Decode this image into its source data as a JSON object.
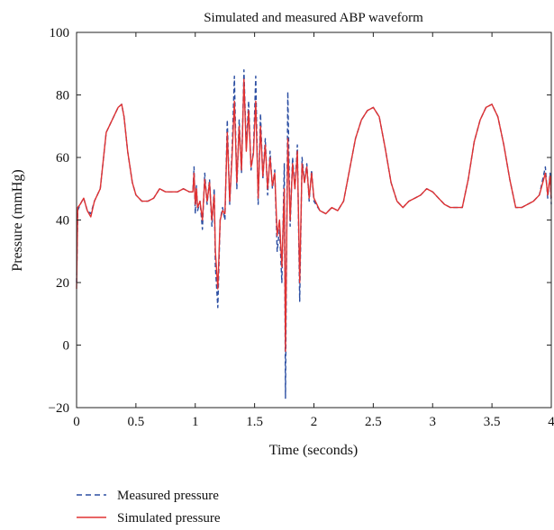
{
  "chart_data": {
    "type": "line",
    "title": "Simulated and measured ABP waveform",
    "xlabel": "Time (seconds)",
    "ylabel": "Pressure (mmHg)",
    "xlim": [
      0,
      4
    ],
    "ylim": [
      -20,
      100
    ],
    "x_ticks": [
      0,
      0.5,
      1,
      1.5,
      2,
      2.5,
      3,
      3.5,
      4
    ],
    "x_tick_labels": [
      "0",
      "0.5",
      "1",
      "1.5",
      "2",
      "2.5",
      "3",
      "3.5",
      "4"
    ],
    "y_ticks": [
      -20,
      0,
      20,
      40,
      60,
      80,
      100
    ],
    "y_tick_labels": [
      "−20",
      "0",
      "20",
      "40",
      "60",
      "80",
      "100"
    ],
    "grid": false,
    "legend_position": "bottom-left-outside",
    "series": [
      {
        "name": "Measured pressure",
        "color": "#2b4ea2",
        "style": "dashed",
        "x": [
          0,
          0.01,
          0.03,
          0.06,
          0.09,
          0.12,
          0.15,
          0.2,
          0.25,
          0.3,
          0.35,
          0.38,
          0.4,
          0.43,
          0.47,
          0.5,
          0.55,
          0.6,
          0.65,
          0.7,
          0.75,
          0.8,
          0.85,
          0.9,
          0.95,
          0.98,
          0.99,
          1.0,
          1.01,
          1.02,
          1.04,
          1.06,
          1.08,
          1.1,
          1.12,
          1.14,
          1.16,
          1.17,
          1.19,
          1.21,
          1.23,
          1.25,
          1.27,
          1.29,
          1.31,
          1.33,
          1.35,
          1.37,
          1.39,
          1.41,
          1.43,
          1.45,
          1.47,
          1.49,
          1.51,
          1.53,
          1.55,
          1.57,
          1.59,
          1.61,
          1.63,
          1.65,
          1.67,
          1.69,
          1.71,
          1.73,
          1.75,
          1.76,
          1.78,
          1.8,
          1.82,
          1.84,
          1.86,
          1.88,
          1.9,
          1.92,
          1.94,
          1.96,
          1.98,
          2.0,
          2.05,
          2.1,
          2.15,
          2.2,
          2.25,
          2.3,
          2.35,
          2.4,
          2.45,
          2.5,
          2.55,
          2.6,
          2.65,
          2.7,
          2.75,
          2.8,
          2.85,
          2.9,
          2.95,
          3.0,
          3.05,
          3.1,
          3.15,
          3.2,
          3.25,
          3.3,
          3.35,
          3.4,
          3.45,
          3.5,
          3.55,
          3.6,
          3.65,
          3.7,
          3.75,
          3.8,
          3.85,
          3.9,
          3.95,
          3.97,
          3.99,
          4.0
        ],
        "y": [
          20,
          43,
          45,
          47,
          43,
          42,
          46,
          50,
          68,
          72,
          76,
          77,
          73,
          62,
          52,
          48,
          46,
          46,
          47,
          50,
          49,
          49,
          49,
          50,
          49,
          49,
          57,
          42,
          51,
          43,
          46,
          37,
          55,
          45,
          53,
          38,
          50,
          25,
          12,
          40,
          44,
          40,
          72,
          45,
          62,
          86,
          50,
          72,
          55,
          88,
          63,
          78,
          56,
          62,
          86,
          45,
          74,
          53,
          66,
          48,
          62,
          50,
          56,
          30,
          37,
          20,
          58,
          -17,
          81,
          38,
          60,
          50,
          64,
          14,
          60,
          52,
          58,
          46,
          56,
          46,
          43,
          42,
          44,
          43,
          46,
          56,
          66,
          72,
          75,
          76,
          73,
          63,
          52,
          46,
          44,
          46,
          47,
          48,
          50,
          49,
          47,
          45,
          44,
          44,
          44,
          53,
          65,
          72,
          76,
          77,
          73,
          64,
          53,
          44,
          44,
          45,
          46,
          48,
          57,
          47,
          55,
          45
        ]
      },
      {
        "name": "Simulated pressure",
        "color": "#e03232",
        "style": "solid",
        "x": [
          0,
          0.01,
          0.03,
          0.06,
          0.09,
          0.12,
          0.15,
          0.2,
          0.25,
          0.3,
          0.35,
          0.38,
          0.4,
          0.43,
          0.47,
          0.5,
          0.55,
          0.6,
          0.65,
          0.7,
          0.75,
          0.8,
          0.85,
          0.9,
          0.95,
          0.98,
          0.99,
          1.0,
          1.01,
          1.02,
          1.04,
          1.06,
          1.08,
          1.1,
          1.12,
          1.14,
          1.16,
          1.17,
          1.19,
          1.21,
          1.23,
          1.25,
          1.27,
          1.29,
          1.31,
          1.33,
          1.35,
          1.37,
          1.39,
          1.41,
          1.43,
          1.45,
          1.47,
          1.49,
          1.51,
          1.53,
          1.55,
          1.57,
          1.59,
          1.61,
          1.63,
          1.65,
          1.67,
          1.69,
          1.71,
          1.73,
          1.75,
          1.76,
          1.78,
          1.8,
          1.82,
          1.84,
          1.86,
          1.88,
          1.9,
          1.92,
          1.94,
          1.96,
          1.98,
          2.0,
          2.05,
          2.1,
          2.15,
          2.2,
          2.25,
          2.3,
          2.35,
          2.4,
          2.45,
          2.5,
          2.55,
          2.6,
          2.65,
          2.7,
          2.75,
          2.8,
          2.85,
          2.9,
          2.95,
          3.0,
          3.05,
          3.1,
          3.15,
          3.2,
          3.25,
          3.3,
          3.35,
          3.4,
          3.45,
          3.5,
          3.55,
          3.6,
          3.65,
          3.7,
          3.75,
          3.8,
          3.85,
          3.9,
          3.95,
          3.97,
          3.99,
          4.0
        ],
        "y": [
          18,
          44,
          45,
          47,
          43,
          41,
          46,
          50,
          68,
          72,
          76,
          77,
          73,
          62,
          52,
          48,
          46,
          46,
          47,
          50,
          49,
          49,
          49,
          50,
          49,
          49,
          55,
          45,
          50,
          44,
          46,
          40,
          53,
          46,
          52,
          40,
          48,
          30,
          18,
          40,
          43,
          42,
          68,
          46,
          60,
          78,
          52,
          70,
          56,
          85,
          62,
          75,
          57,
          61,
          78,
          47,
          70,
          54,
          64,
          50,
          60,
          51,
          55,
          35,
          40,
          25,
          50,
          -2,
          66,
          40,
          58,
          50,
          62,
          20,
          58,
          52,
          57,
          47,
          55,
          47,
          43,
          42,
          44,
          43,
          46,
          56,
          66,
          72,
          75,
          76,
          73,
          63,
          52,
          46,
          44,
          46,
          47,
          48,
          50,
          49,
          47,
          45,
          44,
          44,
          44,
          53,
          65,
          72,
          76,
          77,
          73,
          64,
          53,
          44,
          44,
          45,
          46,
          48,
          55,
          48,
          54,
          47
        ]
      }
    ]
  }
}
